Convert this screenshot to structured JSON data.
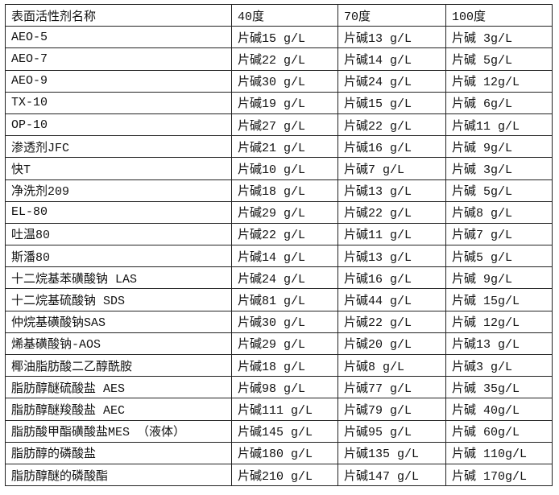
{
  "table": {
    "headers": [
      "表面活性剂名称",
      "40度",
      "70度",
      "100度"
    ],
    "rows": [
      [
        "AEO-5",
        "片碱15 g/L",
        "片碱13 g/L",
        "片碱 3g/L"
      ],
      [
        "AEO-7",
        "片碱22 g/L",
        "片碱14 g/L",
        "片碱 5g/L"
      ],
      [
        "AEO-9",
        "片碱30 g/L",
        "片碱24 g/L",
        "片碱 12g/L"
      ],
      [
        "TX-10",
        "片碱19 g/L",
        "片碱15 g/L",
        "片碱 6g/L"
      ],
      [
        "OP-10",
        "片碱27 g/L",
        "片碱22 g/L",
        "片碱11 g/L"
      ],
      [
        "渗透剂JFC",
        "片碱21 g/L",
        "片碱16 g/L",
        "片碱 9g/L"
      ],
      [
        "快T",
        "片碱10 g/L",
        "片碱7 g/L",
        "片碱 3g/L"
      ],
      [
        "净洗剂209",
        "片碱18 g/L",
        "片碱13 g/L",
        "片碱 5g/L"
      ],
      [
        "EL-80",
        "片碱29 g/L",
        "片碱22 g/L",
        "片碱8 g/L"
      ],
      [
        "吐温80",
        "片碱22 g/L",
        "片碱11 g/L",
        "片碱7 g/L"
      ],
      [
        "斯潘80",
        "片碱14 g/L",
        "片碱13 g/L",
        "片碱5 g/L"
      ],
      [
        "十二烷基苯磺酸钠 LAS",
        "片碱24 g/L",
        "片碱16 g/L",
        "片碱 9g/L"
      ],
      [
        "十二烷基硫酸钠 SDS",
        "片碱81 g/L",
        "片碱44 g/L",
        "片碱 15g/L"
      ],
      [
        "仲烷基磺酸钠SAS",
        "片碱30 g/L",
        "片碱22 g/L",
        "片碱 12g/L"
      ],
      [
        "烯基磺酸钠-AOS",
        "片碱29 g/L",
        "片碱20 g/L",
        "片碱13 g/L"
      ],
      [
        "椰油脂肪酸二乙醇酰胺",
        "片碱18 g/L",
        "片碱8 g/L",
        "片碱3 g/L"
      ],
      [
        "脂肪醇醚硫酸盐 AES",
        "片碱98 g/L",
        "片碱77 g/L",
        "片碱 35g/L"
      ],
      [
        "脂肪醇醚羧酸盐 AEC",
        "片碱111 g/L",
        "片碱79 g/L",
        "片碱 40g/L"
      ],
      [
        "脂肪酸甲酯磺酸盐MES （液体）",
        "片碱145 g/L",
        "片碱95 g/L",
        "片碱 60g/L"
      ],
      [
        "脂肪醇的磷酸盐",
        "片碱180 g/L",
        "片碱135 g/L",
        "片碱 110g/L"
      ],
      [
        "脂肪醇醚的磷酸酯",
        "片碱210 g/L",
        "片碱147 g/L",
        "片碱 170g/L"
      ]
    ]
  }
}
